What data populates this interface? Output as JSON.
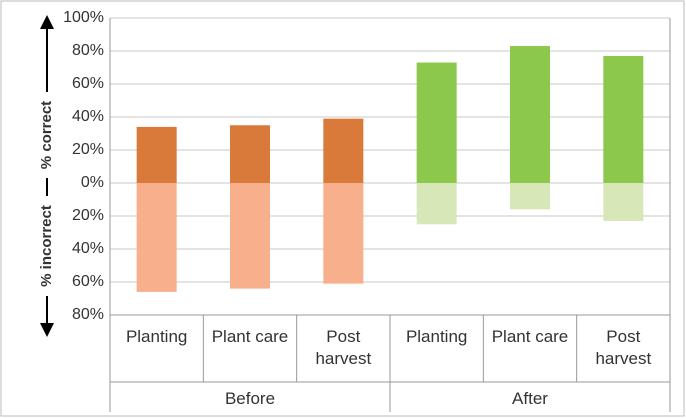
{
  "chart_data": {
    "type": "diverging_bar",
    "axis_labels": [
      "% correct",
      "% incorrect"
    ],
    "categories": [
      "Planting",
      "Plant care",
      "Post harvest",
      "Planting",
      "Plant care",
      "Post harvest"
    ],
    "groups": [
      {
        "name": "Before",
        "size": 3
      },
      {
        "name": "After",
        "size": 3
      }
    ],
    "series": [
      {
        "values": [
          34,
          35,
          39,
          73,
          83,
          77
        ],
        "colors": [
          "#d9793a",
          "#d9793a",
          "#d9793a",
          "#8cc84b",
          "#8cc84b",
          "#8cc84b"
        ]
      },
      {
        "values": [
          -66,
          -64,
          -61,
          -25,
          -16,
          -23
        ],
        "colors": [
          "#f8b08c",
          "#f8b08c",
          "#f8b08c",
          "#d7e7b8",
          "#d7e7b8",
          "#d7e7b8"
        ]
      }
    ],
    "ylim": [
      -80,
      100
    ],
    "yticks": [
      {
        "value": 100,
        "label": "100%"
      },
      {
        "value": 80,
        "label": "80%"
      },
      {
        "value": 60,
        "label": "60%"
      },
      {
        "value": 40,
        "label": "40%"
      },
      {
        "value": 20,
        "label": "20%"
      },
      {
        "value": 0,
        "label": "0%"
      },
      {
        "value": -20,
        "label": "20%"
      },
      {
        "value": -40,
        "label": "40%"
      },
      {
        "value": -60,
        "label": "60%"
      },
      {
        "value": -80,
        "label": "80%"
      }
    ],
    "grid": true
  }
}
